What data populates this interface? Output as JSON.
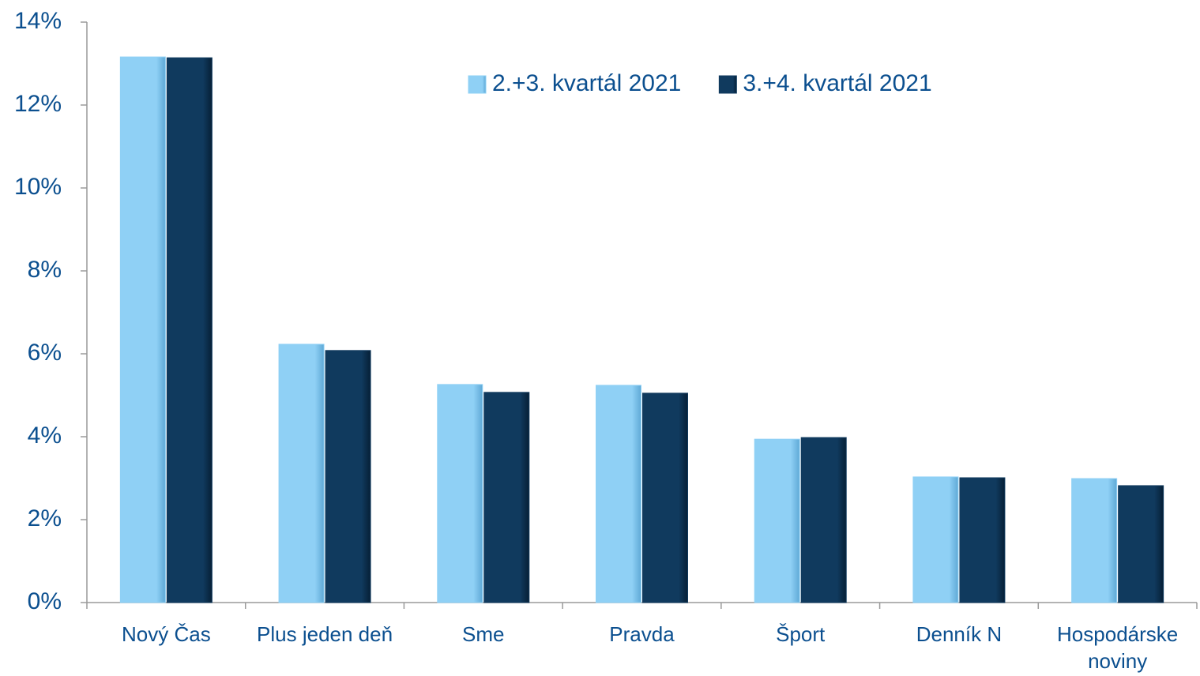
{
  "chart_data": {
    "type": "bar",
    "categories": [
      "Nový Čas",
      "Plus jeden deň",
      "Sme",
      "Pravda",
      "Šport",
      "Denník N",
      "Hospodárske noviny"
    ],
    "series": [
      {
        "name": "2.+3. kvartál 2021",
        "color": "#8fd0f5",
        "values": [
          13.16,
          6.23,
          5.26,
          5.24,
          3.94,
          3.03,
          2.99
        ]
      },
      {
        "name": "3.+4. kvartál 2021",
        "color": "#103a5e",
        "values": [
          13.14,
          6.08,
          5.07,
          5.05,
          3.98,
          3.01,
          2.82
        ]
      }
    ],
    "ylim": [
      0,
      14
    ],
    "yticks": [
      {
        "value": 0,
        "label": "0%"
      },
      {
        "value": 2,
        "label": "2%"
      },
      {
        "value": 4,
        "label": "4%"
      },
      {
        "value": 6,
        "label": "6%"
      },
      {
        "value": 8,
        "label": "8%"
      },
      {
        "value": 10,
        "label": "10%"
      },
      {
        "value": 12,
        "label": "12%"
      },
      {
        "value": 14,
        "label": "14%"
      }
    ],
    "grid": false,
    "legend": "top"
  }
}
